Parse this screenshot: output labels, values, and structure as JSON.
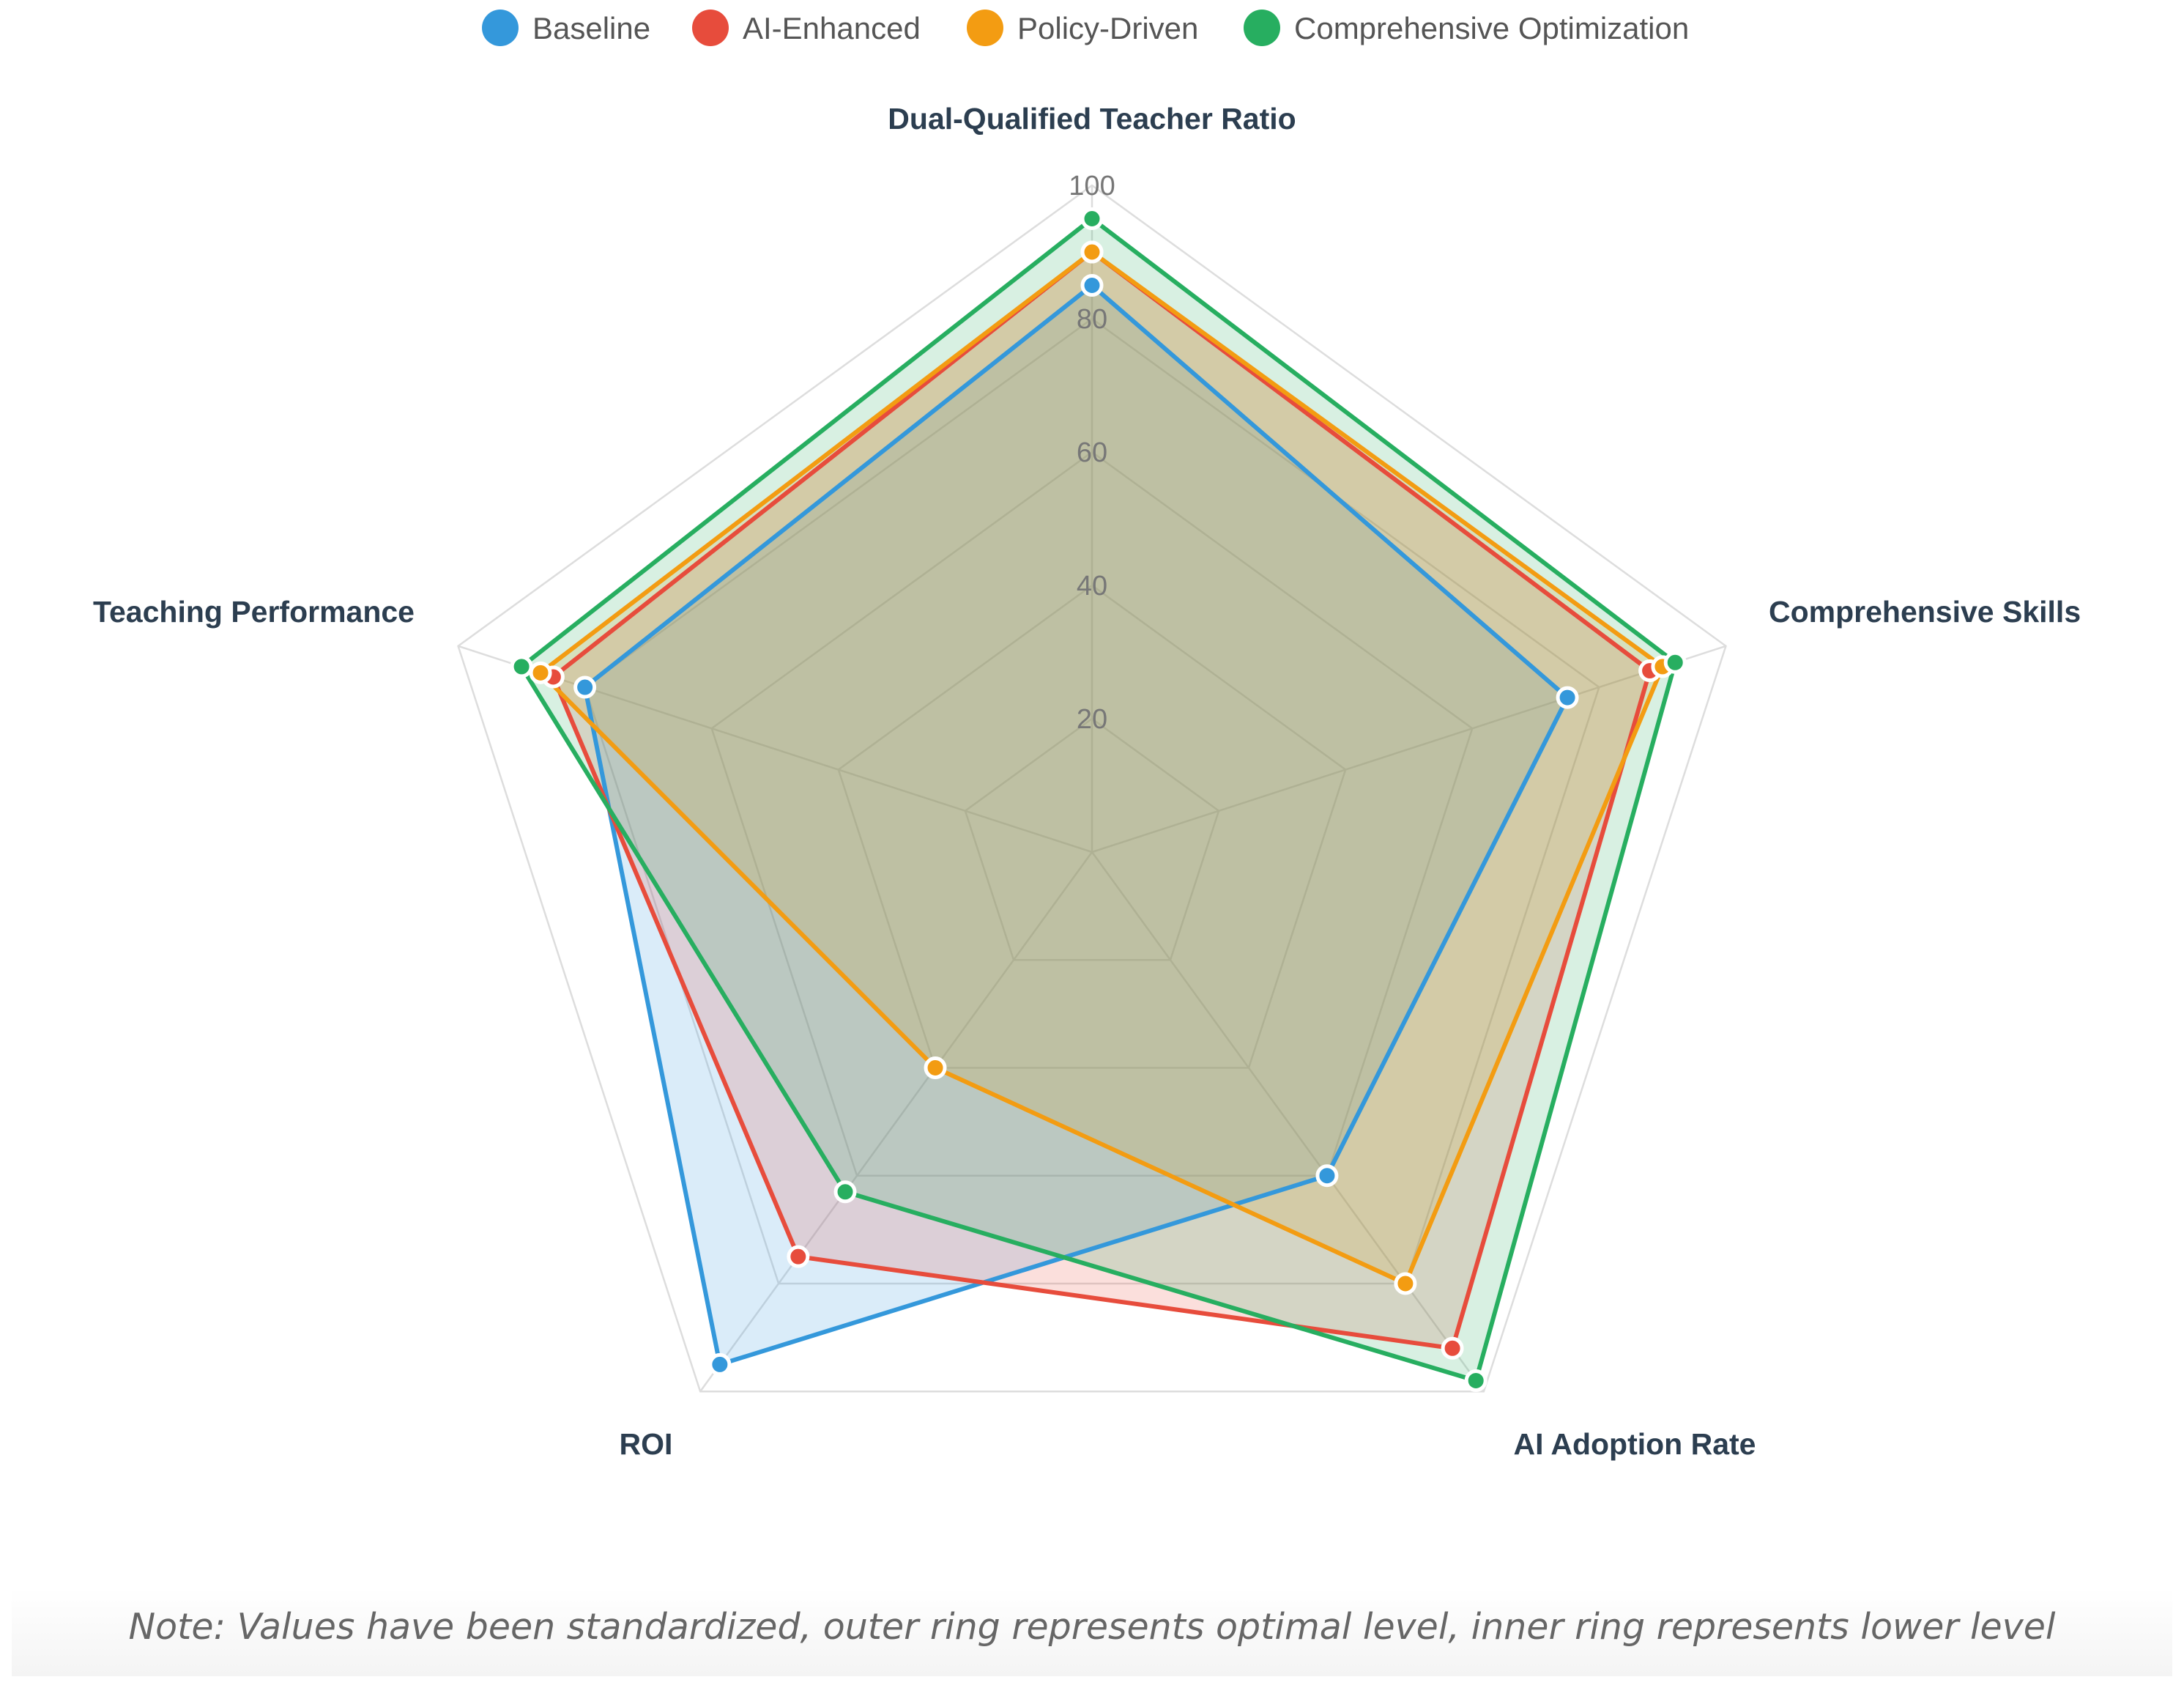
{
  "chart_data": {
    "type": "radar",
    "axes": [
      "Dual-Qualified Teacher Ratio",
      "Comprehensive Skills",
      "AI Adoption Rate",
      "ROI",
      "Teaching Performance"
    ],
    "rlim": [
      0,
      100
    ],
    "ticks": [
      "20",
      "40",
      "60",
      "80",
      "100"
    ],
    "series": [
      {
        "name": "Baseline",
        "color": "#3498db",
        "values": [
          85,
          75,
          60,
          95,
          80
        ]
      },
      {
        "name": "AI-Enhanced",
        "color": "#e74c3c",
        "values": [
          90,
          88,
          92,
          75,
          85
        ]
      },
      {
        "name": "Policy-Driven",
        "color": "#f39c12",
        "values": [
          90,
          90,
          80,
          40,
          87
        ]
      },
      {
        "name": "Comprehensive Optimization",
        "color": "#27ae60",
        "values": [
          95,
          92,
          98,
          63,
          90
        ]
      }
    ],
    "legend_position": "top-center",
    "note": "Note: Values have been standardized, outer ring represents optimal level, inner ring represents lower level"
  }
}
